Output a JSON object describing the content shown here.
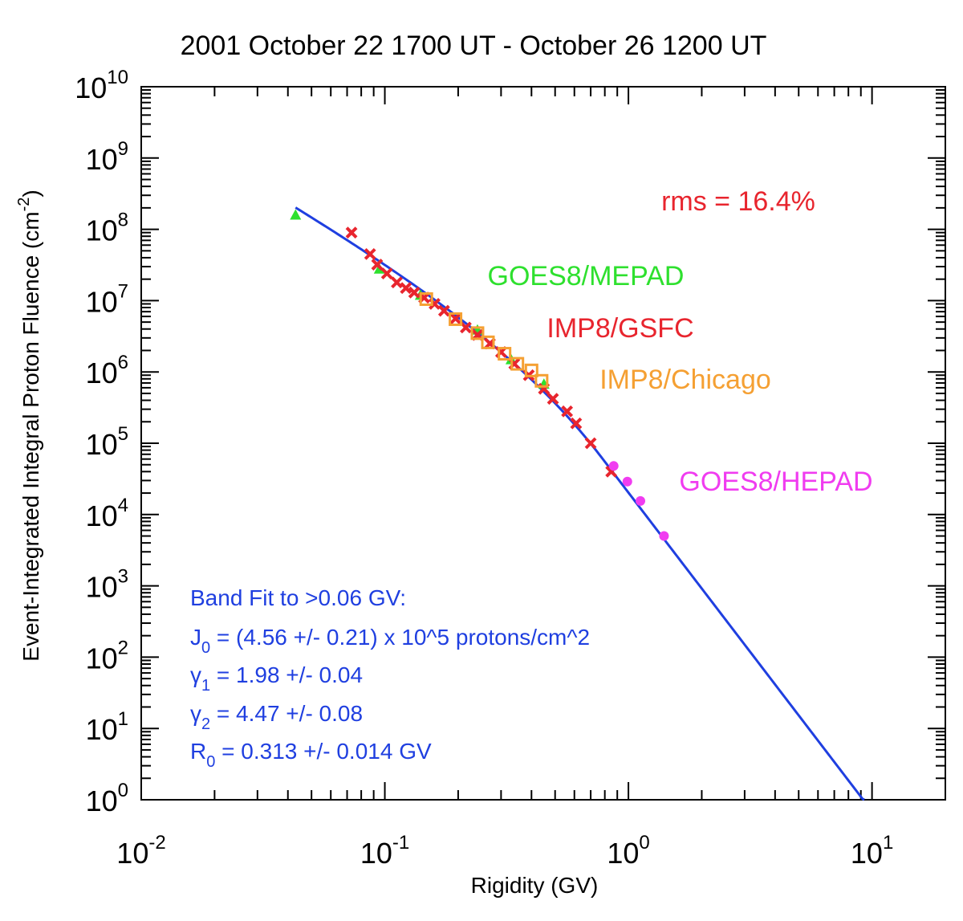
{
  "chart_data": {
    "type": "scatter",
    "title": "2001 October 22 1700 UT - October 26 1200 UT",
    "xlabel": "Rigidity (GV)",
    "ylabel_main": "Event-Integrated Integral Proton Fluence (cm",
    "ylabel_exp": "-2",
    "ylabel_close": ")",
    "x_scale": "log",
    "y_scale": "log",
    "xlim": [
      0.01,
      20
    ],
    "ylim": [
      1,
      10000000000
    ],
    "grid": false,
    "x_ticks": [
      {
        "base": "10",
        "exp": "-2",
        "value": 0.01
      },
      {
        "base": "10",
        "exp": "-1",
        "value": 0.1
      },
      {
        "base": "10",
        "exp": "0",
        "value": 1
      },
      {
        "base": "10",
        "exp": "1",
        "value": 10
      }
    ],
    "y_ticks": [
      {
        "base": "10",
        "exp": "0",
        "value": 1
      },
      {
        "base": "10",
        "exp": "1",
        "value": 10
      },
      {
        "base": "10",
        "exp": "2",
        "value": 100
      },
      {
        "base": "10",
        "exp": "3",
        "value": 1000
      },
      {
        "base": "10",
        "exp": "4",
        "value": 10000
      },
      {
        "base": "10",
        "exp": "5",
        "value": 100000
      },
      {
        "base": "10",
        "exp": "6",
        "value": 1000000
      },
      {
        "base": "10",
        "exp": "7",
        "value": 10000000
      },
      {
        "base": "10",
        "exp": "8",
        "value": 100000000
      },
      {
        "base": "10",
        "exp": "9",
        "value": 1000000000
      },
      {
        "base": "10",
        "exp": "10",
        "value": 10000000000
      }
    ],
    "rms_text": "rms = 16.4%",
    "series": [
      {
        "name": "GOES8/MEPAD",
        "color": "#2ee02e",
        "marker": "triangle",
        "x": [
          0.043,
          0.095,
          0.14,
          0.24,
          0.33,
          0.45
        ],
        "y": [
          160000000,
          28000000,
          12000000,
          3900000,
          1500000,
          680000
        ]
      },
      {
        "name": "IMP8/GSFC",
        "color": "#e8252e",
        "marker": "x",
        "x": [
          0.073,
          0.087,
          0.093,
          0.102,
          0.112,
          0.122,
          0.132,
          0.145,
          0.16,
          0.175,
          0.195,
          0.215,
          0.24,
          0.27,
          0.3,
          0.34,
          0.39,
          0.45,
          0.49,
          0.56,
          0.61,
          0.7,
          0.85
        ],
        "y": [
          90000000,
          45000000,
          32000000,
          24000000,
          18000000,
          15000000,
          13000000,
          11000000,
          9000000,
          7200000,
          5600000,
          4200000,
          3300000,
          2500000,
          1900000,
          1300000,
          900000,
          580000,
          420000,
          280000,
          190000,
          100000,
          40000
        ]
      },
      {
        "name": "IMP8/Chicago",
        "color": "#f5a033",
        "marker": "square",
        "x": [
          0.148,
          0.195,
          0.24,
          0.265,
          0.31,
          0.35,
          0.4,
          0.44
        ],
        "y": [
          10500000,
          5500000,
          3500000,
          2600000,
          1800000,
          1300000,
          1050000,
          750000
        ]
      },
      {
        "name": "GOES8/HEPAD",
        "color": "#f03cf0",
        "marker": "circle",
        "x": [
          0.87,
          0.99,
          1.12,
          1.4
        ],
        "y": [
          48000,
          29000,
          15500,
          5000
        ]
      }
    ],
    "fit": {
      "name": "Band Fit to >0.06 GV",
      "color": "#1f3fe0",
      "J0": 456000,
      "gamma1": 1.98,
      "gamma2": 4.47,
      "R0": 0.313,
      "x_start": 0.043,
      "x_end": 9.3
    },
    "fit_text": {
      "line1": "Band Fit to >0.06 GV:",
      "line2_pre": "J",
      "line2_sub": "0",
      "line2_post": " = (4.56 +/- 0.21) x 10^5 protons/cm^2",
      "line3_pre": "γ",
      "line3_sub": "1",
      "line3_post": " = 1.98 +/- 0.04",
      "line4_pre": "γ",
      "line4_sub": "2",
      "line4_post": " = 4.47 +/- 0.08",
      "line5_pre": "R",
      "line5_sub": "0",
      "line5_post": " = 0.313 +/- 0.014 GV"
    }
  }
}
